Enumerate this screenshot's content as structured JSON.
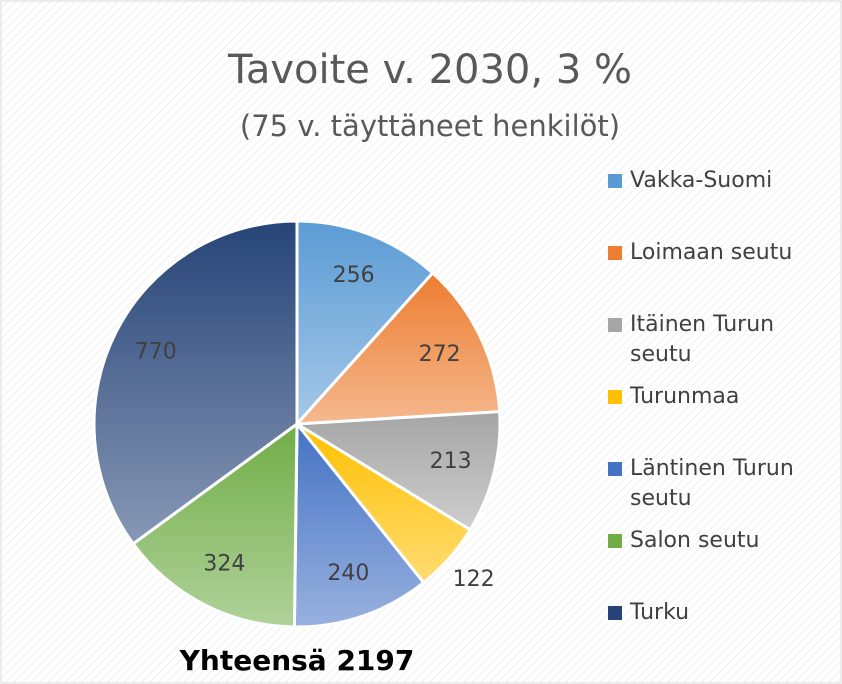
{
  "chart_data": {
    "type": "pie",
    "title": "Tavoite v. 2030, 3 %",
    "subtitle": "(75 v. täyttäneet henkilöt)",
    "annotation": "Yhteensä 2197",
    "categories": [
      "Vakka-Suomi",
      "Loimaan seutu",
      "Itäinen Turun seutu",
      "Turunmaa",
      "Läntinen Turun seutu",
      "Salon seutu",
      "Turku"
    ],
    "values": [
      256,
      272,
      213,
      122,
      240,
      324,
      770
    ],
    "colors": [
      "#5b9bd5",
      "#ed7d31",
      "#a5a5a5",
      "#ffc000",
      "#4472c4",
      "#70ad47",
      "#264478"
    ],
    "legend": "right"
  }
}
